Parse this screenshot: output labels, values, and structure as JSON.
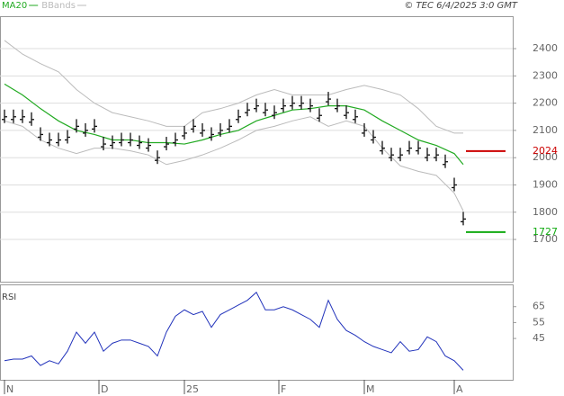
{
  "chart_data": [
    {
      "type": "ohlc",
      "annotation": "© TEC 6/4/2025 3:0 GMT",
      "x": [
        0,
        1,
        2,
        3,
        4,
        5,
        6,
        7,
        8,
        9,
        10,
        11,
        12,
        13,
        14,
        15,
        16,
        17,
        18,
        19,
        20,
        21,
        22,
        23,
        24,
        25,
        26,
        27,
        28,
        29,
        30,
        31,
        32,
        33,
        34,
        35,
        36,
        37,
        38,
        39,
        40,
        41,
        42,
        43,
        44,
        45,
        46,
        47,
        48,
        49,
        50,
        51
      ],
      "values": [
        2150,
        2150,
        2150,
        2140,
        2085,
        2065,
        2065,
        2075,
        2115,
        2100,
        2115,
        2050,
        2055,
        2065,
        2065,
        2055,
        2045,
        2000,
        2050,
        2065,
        2090,
        2115,
        2100,
        2085,
        2100,
        2115,
        2150,
        2175,
        2190,
        2175,
        2165,
        2190,
        2200,
        2200,
        2190,
        2155,
        2215,
        2190,
        2165,
        2150,
        2100,
        2075,
        2035,
        2010,
        2010,
        2035,
        2035,
        2010,
        2010,
        1985,
        1900,
        1775
      ],
      "color": "#111111",
      "series": [
        {
          "name": "MA20",
          "color": "#22aa22",
          "x": [
            0,
            2,
            4,
            6,
            8,
            10,
            12,
            14,
            16,
            18,
            20,
            22,
            24,
            26,
            28,
            30,
            32,
            34,
            36,
            38,
            40,
            42,
            44,
            46,
            48,
            50,
            51
          ],
          "values": [
            2270,
            2230,
            2180,
            2135,
            2100,
            2085,
            2065,
            2065,
            2055,
            2055,
            2050,
            2065,
            2085,
            2100,
            2135,
            2155,
            2175,
            2180,
            2190,
            2190,
            2175,
            2135,
            2100,
            2065,
            2045,
            2015,
            1975
          ]
        },
        {
          "name": "BBands",
          "color": "#bbbbbb",
          "x": [
            0,
            2,
            4,
            6,
            8,
            10,
            12,
            14,
            16,
            18,
            20,
            22,
            24,
            26,
            28,
            30,
            32,
            34,
            36,
            38,
            40,
            42,
            44,
            46,
            48,
            50,
            51
          ],
          "upper": [
            2430,
            2380,
            2345,
            2315,
            2250,
            2200,
            2165,
            2150,
            2135,
            2115,
            2115,
            2165,
            2180,
            2200,
            2230,
            2250,
            2230,
            2230,
            2230,
            2250,
            2265,
            2250,
            2230,
            2180,
            2115,
            2090,
            2090
          ],
          "lower": [
            2135,
            2115,
            2065,
            2035,
            2015,
            2035,
            2035,
            2025,
            2010,
            1975,
            1990,
            2010,
            2035,
            2065,
            2100,
            2115,
            2135,
            2150,
            2115,
            2135,
            2115,
            2035,
            1970,
            1950,
            1935,
            1870,
            1805
          ]
        }
      ],
      "levels": [
        {
          "value": 2024,
          "label": "2024",
          "color": "#cc0000"
        },
        {
          "value": 1727,
          "label": "1727",
          "color": "#11aa11"
        }
      ],
      "xlim": [
        -0.5,
        56.5
      ],
      "ylim": [
        1545,
        2519
      ],
      "yticks": [
        1700,
        1800,
        1900,
        2000,
        2100,
        2200,
        2300,
        2400
      ],
      "grid": true
    },
    {
      "type": "line",
      "title": "RSI",
      "x": [
        0,
        1,
        2,
        3,
        4,
        5,
        6,
        7,
        8,
        9,
        10,
        11,
        12,
        13,
        14,
        15,
        16,
        17,
        18,
        19,
        20,
        21,
        22,
        23,
        24,
        25,
        26,
        27,
        28,
        29,
        30,
        31,
        32,
        33,
        34,
        35,
        36,
        37,
        38,
        39,
        40,
        41,
        42,
        43,
        44,
        45,
        46,
        47,
        48,
        49,
        50,
        51
      ],
      "values": [
        31,
        32,
        32,
        34,
        28,
        31,
        29,
        37,
        49,
        42,
        49,
        37,
        42,
        44,
        44,
        42,
        40,
        34,
        49,
        59,
        63,
        60,
        62,
        52,
        60,
        63,
        66,
        69,
        74,
        63,
        63,
        65,
        63,
        60,
        57,
        52,
        69,
        57,
        50,
        47,
        43,
        40,
        38,
        36,
        43,
        37,
        38,
        46,
        43,
        34,
        31,
        25
      ],
      "color": "#2233bb",
      "xlim": [
        -0.5,
        56.5
      ],
      "ylim": [
        19,
        79
      ],
      "yticks": [
        45,
        55,
        65
      ],
      "xticks": [
        {
          "value": 0,
          "label": "N"
        },
        {
          "value": 10.5,
          "label": "D"
        },
        {
          "value": 20,
          "label": "25"
        },
        {
          "value": 30.5,
          "label": "F"
        },
        {
          "value": 40,
          "label": "M"
        },
        {
          "value": 50,
          "label": "A"
        }
      ]
    }
  ]
}
